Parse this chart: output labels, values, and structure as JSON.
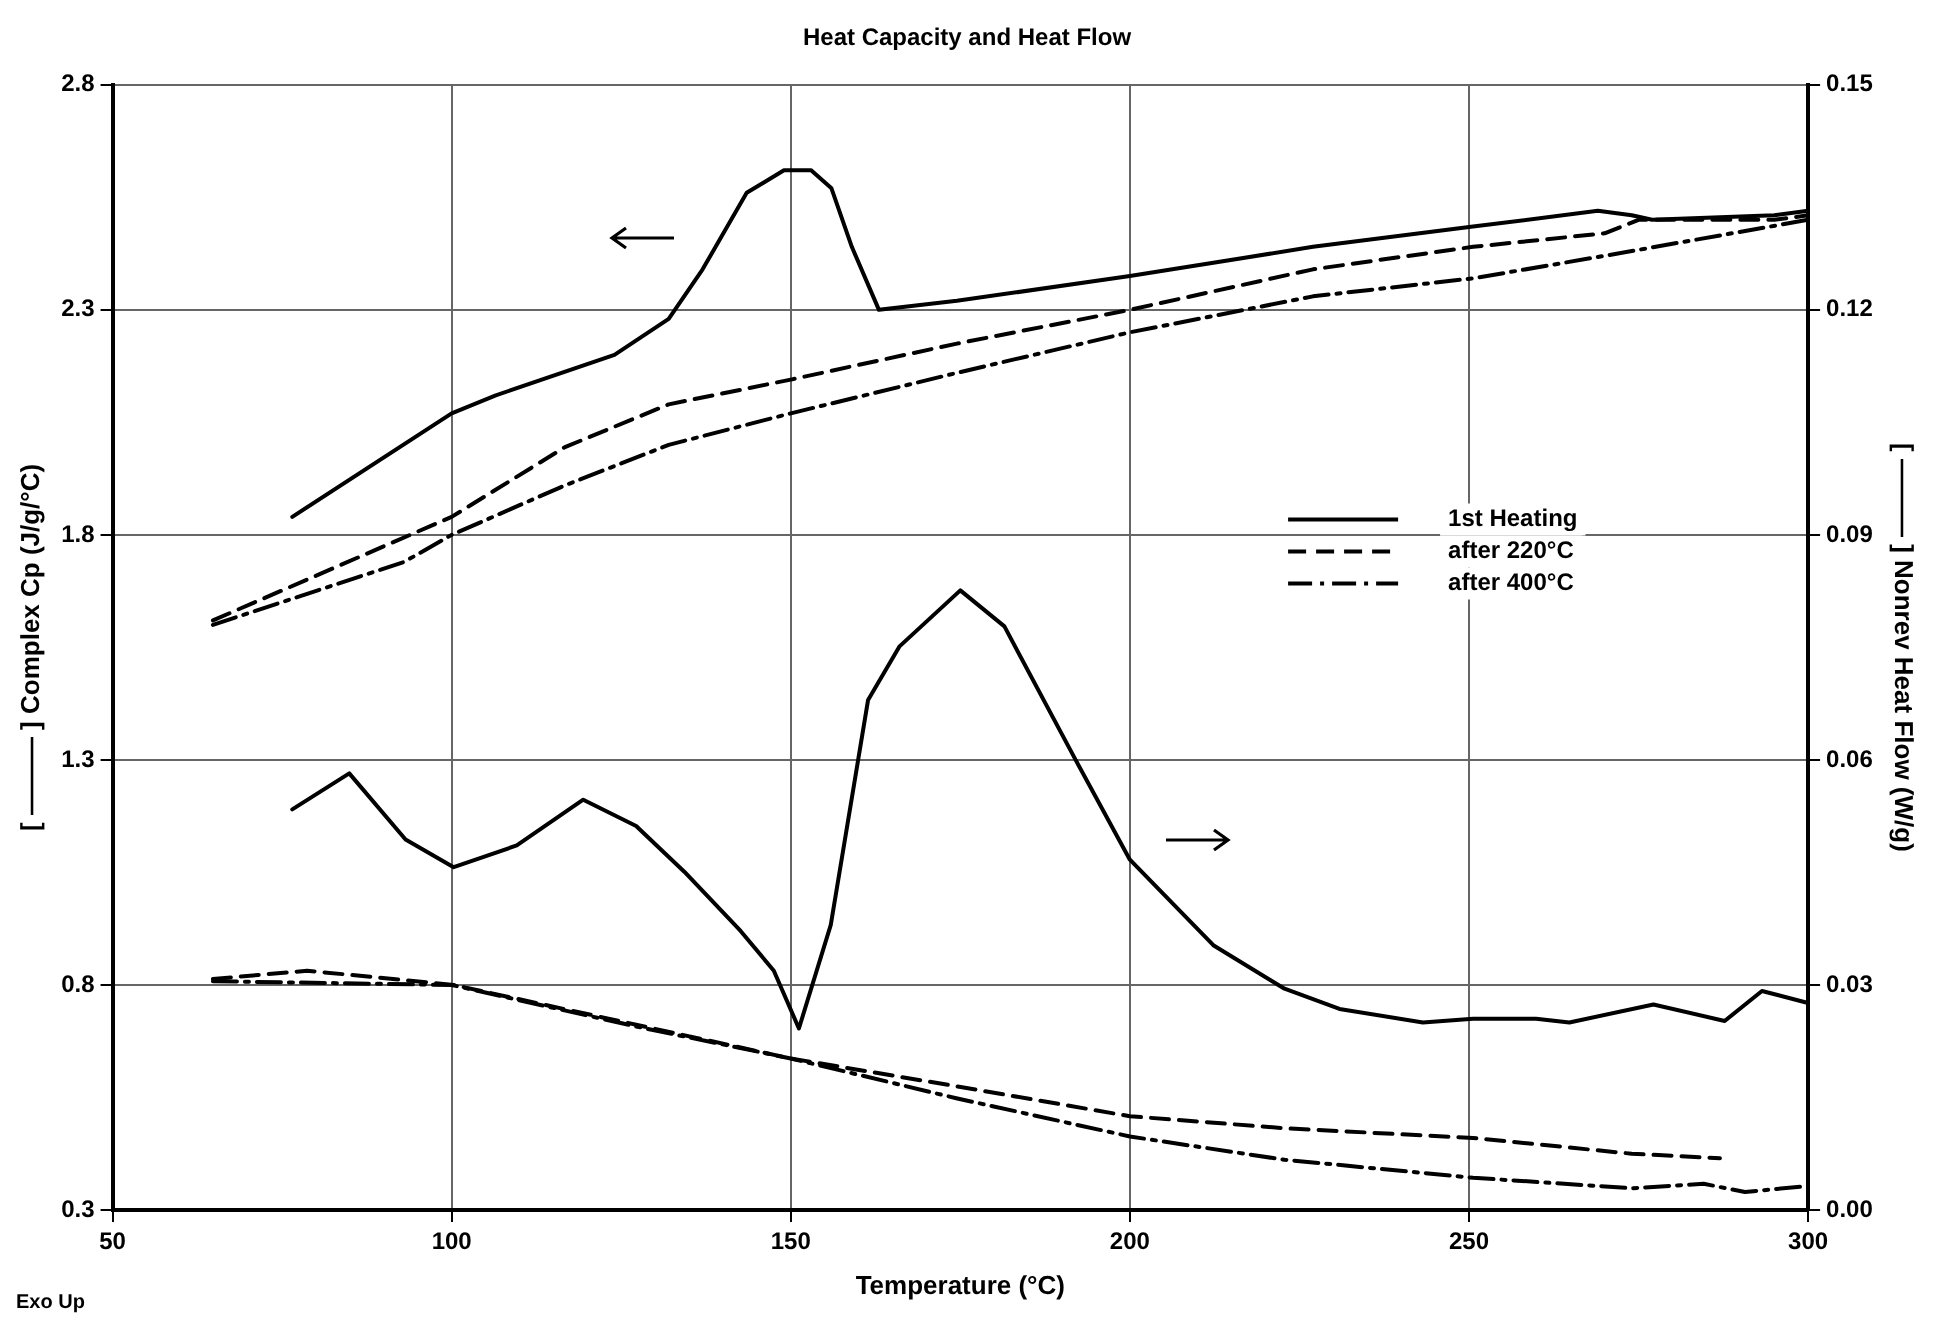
{
  "chart_data": {
    "type": "line",
    "title": "Heat Capacity and Heat Flow",
    "xlabel": "Temperature (°C)",
    "ylabel": "[ ——— ] Complex Cp (J/g/°C)",
    "y2label": "[ ——— ] Nonrev Heat Flow (W/g)",
    "annotations": [
      "Exo Up"
    ],
    "xlim": [
      50,
      300
    ],
    "xticks": [
      50,
      100,
      150,
      200,
      250,
      300
    ],
    "ylim": [
      0.3,
      2.8
    ],
    "yticks": [
      0.3,
      0.8,
      1.3,
      1.8,
      2.3,
      2.8
    ],
    "y2lim": [
      0,
      0.15
    ],
    "y2ticks": [
      {
        "value": 0,
        "label": "0.00"
      },
      {
        "value": 0.03,
        "label": "0.03"
      },
      {
        "value": 0.06,
        "label": "0.06"
      },
      {
        "value": 0.09,
        "label": "0.09"
      },
      {
        "value": 0.12,
        "label": "0.12"
      },
      {
        "value": 0.15,
        "label": "0.15"
      }
    ],
    "grid": true,
    "legend": "right",
    "marker": "none",
    "series": [
      {
        "name": "1st Heating",
        "color": "#000000",
        "line_style": "solid",
        "x": [
          76.5,
          100,
          106.5,
          124,
          132,
          137,
          143.5,
          149,
          153,
          156,
          159,
          163,
          174.5,
          200,
          227,
          250.6,
          269,
          274,
          277,
          295,
          300
        ],
        "values": [
          1.84,
          2.07,
          2.11,
          2.2,
          2.28,
          2.39,
          2.56,
          2.61,
          2.61,
          2.57,
          2.44,
          2.3,
          2.32,
          2.375,
          2.44,
          2.485,
          2.52,
          2.51,
          2.5,
          2.51,
          2.52
        ]
      },
      {
        "name": "after 220°C",
        "color": "#000000",
        "line_style": "dashed",
        "x": [
          64.8,
          100,
          116.7,
          132,
          150,
          174.5,
          200,
          227,
          250.6,
          270,
          275,
          295,
          300
        ],
        "values": [
          1.61,
          1.84,
          1.995,
          2.09,
          2.145,
          2.225,
          2.3,
          2.39,
          2.44,
          2.47,
          2.5,
          2.5,
          2.51
        ]
      },
      {
        "name": "after 400°C",
        "color": "#000000",
        "line_style": "dashdot",
        "x": [
          64.8,
          93,
          100,
          116.7,
          132,
          150,
          174.5,
          200,
          227,
          250.6,
          270,
          300
        ],
        "values": [
          1.6,
          1.74,
          1.8,
          1.91,
          2.0,
          2.07,
          2.16,
          2.25,
          2.33,
          2.37,
          2.42,
          2.5
        ]
      },
      {
        "color": "#000000",
        "line_style": "solid",
        "axis": "y2",
        "x": [
          76.5,
          84.9,
          93.2,
          100.3,
          109.6,
          119.4,
          127.2,
          134.3,
          142.6,
          147.5,
          151.2,
          155.9,
          161.4,
          166,
          175,
          181.5,
          192,
          200,
          212.3,
          222.8,
          230.9,
          243.2,
          250.6,
          259.9,
          264.8,
          277.2,
          287.7,
          293.2,
          300
        ],
        "values": [
          0.0534,
          0.0582,
          0.0494,
          0.0457,
          0.0486,
          0.0547,
          0.0512,
          0.0451,
          0.0372,
          0.0319,
          0.0242,
          0.038,
          0.068,
          0.0751,
          0.0826,
          0.0778,
          0.06,
          0.0467,
          0.0353,
          0.0295,
          0.0268,
          0.025,
          0.0255,
          0.0255,
          0.025,
          0.0274,
          0.0252,
          0.0292,
          0.0276
        ]
      },
      {
        "color": "#000000",
        "line_style": "dashed",
        "axis": "y2",
        "x": [
          64.8,
          78.7,
          100.3,
          127.2,
          150,
          174.4,
          200,
          222.8,
          250.6,
          274,
          287
        ],
        "values": [
          0.0308,
          0.0319,
          0.03,
          0.0247,
          0.0202,
          0.0165,
          0.0125,
          0.0109,
          0.0096,
          0.0075,
          0.0069
        ]
      },
      {
        "color": "#000000",
        "line_style": "dashdot",
        "axis": "y2",
        "x": [
          64.8,
          100,
          127,
          150,
          174.4,
          200,
          222.8,
          250.6,
          274,
          284.6,
          290.7,
          300
        ],
        "values": [
          0.0305,
          0.03,
          0.0245,
          0.0202,
          0.0149,
          0.0098,
          0.0067,
          0.0043,
          0.0029,
          0.0035,
          0.0024,
          0.0032
        ]
      }
    ]
  }
}
